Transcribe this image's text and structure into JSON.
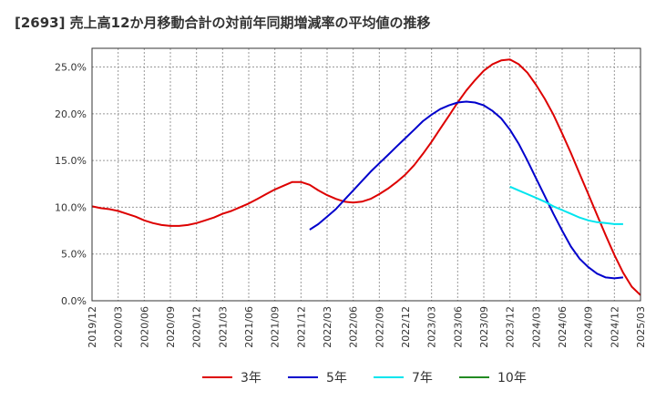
{
  "chart_data": {
    "type": "line",
    "title": "[2693]  売上高12か月移動合計の対前年同期増減率の平均値の推移",
    "xlabel": "",
    "ylabel": "",
    "ylim": [
      0,
      0.27
    ],
    "xlim": [
      "2019/12",
      "2025/03"
    ],
    "yticks": [
      0,
      0.05,
      0.1,
      0.15,
      0.2,
      0.25
    ],
    "ytick_labels": [
      "0.0%",
      "5.0%",
      "10.0%",
      "15.0%",
      "20.0%",
      "25.0%"
    ],
    "xtick_labels": [
      "2019/12",
      "2020/03",
      "2020/06",
      "2020/09",
      "2020/12",
      "2021/03",
      "2021/06",
      "2021/09",
      "2021/12",
      "2022/03",
      "2022/06",
      "2022/09",
      "2022/12",
      "2023/03",
      "2023/06",
      "2023/09",
      "2023/12",
      "2024/03",
      "2024/06",
      "2024/09",
      "2024/12",
      "2025/03"
    ],
    "grid": true,
    "legend_position": "bottom",
    "series": [
      {
        "name": "3年",
        "color": "#dd0000",
        "points": [
          [
            "2019/12",
            0.101
          ],
          [
            "2020/01",
            0.099
          ],
          [
            "2020/02",
            0.098
          ],
          [
            "2020/03",
            0.096
          ],
          [
            "2020/04",
            0.093
          ],
          [
            "2020/05",
            0.09
          ],
          [
            "2020/06",
            0.086
          ],
          [
            "2020/07",
            0.083
          ],
          [
            "2020/08",
            0.081
          ],
          [
            "2020/09",
            0.08
          ],
          [
            "2020/10",
            0.08
          ],
          [
            "2020/11",
            0.081
          ],
          [
            "2020/12",
            0.083
          ],
          [
            "2021/01",
            0.086
          ],
          [
            "2021/02",
            0.089
          ],
          [
            "2021/03",
            0.093
          ],
          [
            "2021/04",
            0.096
          ],
          [
            "2021/05",
            0.1
          ],
          [
            "2021/06",
            0.104
          ],
          [
            "2021/07",
            0.109
          ],
          [
            "2021/08",
            0.114
          ],
          [
            "2021/09",
            0.119
          ],
          [
            "2021/10",
            0.123
          ],
          [
            "2021/11",
            0.127
          ],
          [
            "2021/12",
            0.127
          ],
          [
            "2022/01",
            0.124
          ],
          [
            "2022/02",
            0.118
          ],
          [
            "2022/03",
            0.113
          ],
          [
            "2022/04",
            0.109
          ],
          [
            "2022/05",
            0.106
          ],
          [
            "2022/06",
            0.105
          ],
          [
            "2022/07",
            0.106
          ],
          [
            "2022/08",
            0.109
          ],
          [
            "2022/09",
            0.114
          ],
          [
            "2022/10",
            0.12
          ],
          [
            "2022/11",
            0.127
          ],
          [
            "2022/12",
            0.135
          ],
          [
            "2023/01",
            0.145
          ],
          [
            "2023/02",
            0.157
          ],
          [
            "2023/03",
            0.17
          ],
          [
            "2023/04",
            0.184
          ],
          [
            "2023/05",
            0.198
          ],
          [
            "2023/06",
            0.212
          ],
          [
            "2023/07",
            0.225
          ],
          [
            "2023/08",
            0.236
          ],
          [
            "2023/09",
            0.246
          ],
          [
            "2023/10",
            0.253
          ],
          [
            "2023/11",
            0.257
          ],
          [
            "2023/12",
            0.258
          ],
          [
            "2024/01",
            0.253
          ],
          [
            "2024/02",
            0.244
          ],
          [
            "2024/03",
            0.231
          ],
          [
            "2024/04",
            0.216
          ],
          [
            "2024/05",
            0.199
          ],
          [
            "2024/06",
            0.179
          ],
          [
            "2024/07",
            0.158
          ],
          [
            "2024/08",
            0.136
          ],
          [
            "2024/09",
            0.114
          ],
          [
            "2024/10",
            0.092
          ],
          [
            "2024/11",
            0.07
          ],
          [
            "2024/12",
            0.049
          ],
          [
            "2025/01",
            0.03
          ],
          [
            "2025/02",
            0.015
          ],
          [
            "2025/03",
            0.006
          ]
        ]
      },
      {
        "name": "5年",
        "color": "#0000cc",
        "points": [
          [
            "2022/01",
            0.076
          ],
          [
            "2022/02",
            0.082
          ],
          [
            "2022/03",
            0.09
          ],
          [
            "2022/04",
            0.098
          ],
          [
            "2022/05",
            0.108
          ],
          [
            "2022/06",
            0.118
          ],
          [
            "2022/07",
            0.128
          ],
          [
            "2022/08",
            0.138
          ],
          [
            "2022/09",
            0.147
          ],
          [
            "2022/10",
            0.156
          ],
          [
            "2022/11",
            0.165
          ],
          [
            "2022/12",
            0.174
          ],
          [
            "2023/01",
            0.183
          ],
          [
            "2023/02",
            0.192
          ],
          [
            "2023/03",
            0.199
          ],
          [
            "2023/04",
            0.205
          ],
          [
            "2023/05",
            0.209
          ],
          [
            "2023/06",
            0.212
          ],
          [
            "2023/07",
            0.213
          ],
          [
            "2023/08",
            0.212
          ],
          [
            "2023/09",
            0.209
          ],
          [
            "2023/10",
            0.203
          ],
          [
            "2023/11",
            0.195
          ],
          [
            "2023/12",
            0.183
          ],
          [
            "2024/01",
            0.168
          ],
          [
            "2024/02",
            0.15
          ],
          [
            "2024/03",
            0.131
          ],
          [
            "2024/04",
            0.112
          ],
          [
            "2024/05",
            0.093
          ],
          [
            "2024/06",
            0.075
          ],
          [
            "2024/07",
            0.058
          ],
          [
            "2024/08",
            0.045
          ],
          [
            "2024/09",
            0.036
          ],
          [
            "2024/10",
            0.029
          ],
          [
            "2024/11",
            0.025
          ],
          [
            "2024/12",
            0.024
          ],
          [
            "2025/01",
            0.025
          ]
        ]
      },
      {
        "name": "7年",
        "color": "#00e5ee",
        "points": [
          [
            "2023/12",
            0.122
          ],
          [
            "2024/01",
            0.118
          ],
          [
            "2024/02",
            0.114
          ],
          [
            "2024/03",
            0.11
          ],
          [
            "2024/04",
            0.106
          ],
          [
            "2024/05",
            0.101
          ],
          [
            "2024/06",
            0.097
          ],
          [
            "2024/07",
            0.093
          ],
          [
            "2024/08",
            0.089
          ],
          [
            "2024/09",
            0.086
          ],
          [
            "2024/10",
            0.084
          ],
          [
            "2024/11",
            0.083
          ],
          [
            "2024/12",
            0.082
          ],
          [
            "2025/01",
            0.082
          ]
        ]
      },
      {
        "name": "10年",
        "color": "#228b22",
        "points": []
      }
    ]
  }
}
